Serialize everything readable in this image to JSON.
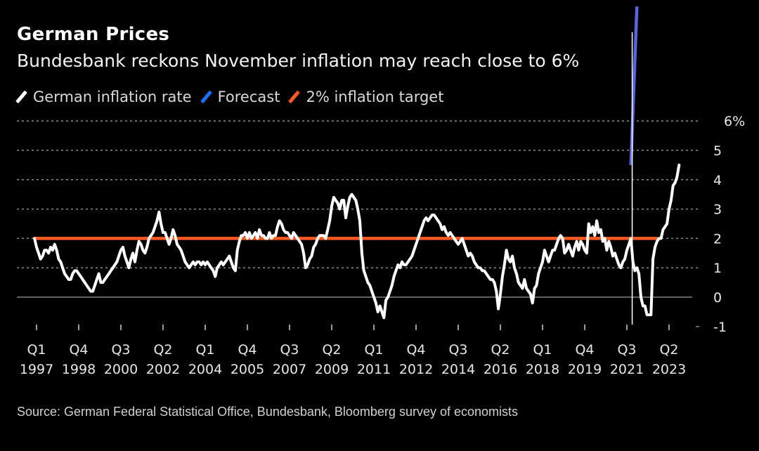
{
  "header": {
    "title": "German Prices",
    "subtitle": "Bundesbank reckons November inflation may reach close to 6%"
  },
  "legend": [
    {
      "label": "German inflation rate",
      "color": "#ffffff"
    },
    {
      "label": "Forecast",
      "color": "#1f6fff"
    },
    {
      "label": "2% inflation target",
      "color": "#ff5a24"
    }
  ],
  "footer": {
    "source": "Source: German Federal Statistical Office, Bundesbank, Bloomberg survey of economists"
  },
  "chart_data": {
    "type": "line",
    "title": "German Prices",
    "subtitle": "Bundesbank reckons November inflation may reach close to 6%",
    "xlabel": "",
    "ylabel": "",
    "ylim": [
      -1,
      6
    ],
    "y_ticks": [
      {
        "value": 6,
        "label": "6%"
      },
      {
        "value": 5,
        "label": "5"
      },
      {
        "value": 4,
        "label": "4"
      },
      {
        "value": 3,
        "label": "3"
      },
      {
        "value": 2,
        "label": "2"
      },
      {
        "value": 1,
        "label": "1"
      },
      {
        "value": 0,
        "label": "0"
      },
      {
        "value": -1,
        "label": "-1"
      }
    ],
    "x_range": [
      "1997-01",
      "2023-09"
    ],
    "x_ticks": [
      {
        "date": "1997-02",
        "q": "Q1",
        "year": "1997"
      },
      {
        "date": "1998-11",
        "q": "Q4",
        "year": "1998"
      },
      {
        "date": "2000-08",
        "q": "Q3",
        "year": "2000"
      },
      {
        "date": "2002-05",
        "q": "Q2",
        "year": "2002"
      },
      {
        "date": "2004-02",
        "q": "Q1",
        "year": "2004"
      },
      {
        "date": "2005-11",
        "q": "Q4",
        "year": "2005"
      },
      {
        "date": "2007-08",
        "q": "Q3",
        "year": "2007"
      },
      {
        "date": "2009-05",
        "q": "Q2",
        "year": "2009"
      },
      {
        "date": "2011-02",
        "q": "Q1",
        "year": "2011"
      },
      {
        "date": "2012-11",
        "q": "Q4",
        "year": "2012"
      },
      {
        "date": "2014-08",
        "q": "Q3",
        "year": "2014"
      },
      {
        "date": "2016-05",
        "q": "Q2",
        "year": "2016"
      },
      {
        "date": "2018-02",
        "q": "Q1",
        "year": "2018"
      },
      {
        "date": "2019-11",
        "q": "Q4",
        "year": "2019"
      },
      {
        "date": "2021-08",
        "q": "Q3",
        "year": "2021"
      },
      {
        "date": "2023-05",
        "q": "Q2",
        "year": "2023"
      }
    ],
    "grid": true,
    "legend_position": "top-left",
    "vertical_marker": {
      "date": "2021-11"
    },
    "series": [
      {
        "name": "German inflation rate",
        "color": "#ffffff",
        "start": "1997-01",
        "frequency": "monthly",
        "values": [
          2.0,
          1.7,
          1.5,
          1.3,
          1.4,
          1.6,
          1.6,
          1.5,
          1.7,
          1.6,
          1.8,
          1.6,
          1.3,
          1.2,
          1.0,
          0.8,
          0.7,
          0.6,
          0.6,
          0.8,
          0.9,
          0.9,
          0.8,
          0.7,
          0.6,
          0.5,
          0.4,
          0.3,
          0.2,
          0.2,
          0.4,
          0.6,
          0.8,
          0.5,
          0.5,
          0.6,
          0.7,
          0.8,
          0.9,
          1.0,
          1.1,
          1.2,
          1.4,
          1.6,
          1.7,
          1.4,
          1.2,
          1.0,
          1.3,
          1.5,
          1.2,
          1.6,
          1.9,
          1.8,
          1.6,
          1.5,
          1.7,
          2.0,
          2.1,
          2.2,
          2.4,
          2.6,
          2.9,
          2.5,
          2.2,
          2.2,
          2.0,
          1.8,
          2.0,
          2.3,
          2.1,
          1.8,
          1.7,
          1.6,
          1.4,
          1.2,
          1.1,
          1.0,
          1.1,
          1.2,
          1.1,
          1.2,
          1.2,
          1.1,
          1.2,
          1.1,
          1.2,
          1.1,
          1.0,
          0.9,
          0.7,
          1.0,
          1.1,
          1.2,
          1.1,
          1.2,
          1.3,
          1.4,
          1.2,
          1.0,
          0.9,
          1.6,
          1.9,
          2.1,
          2.1,
          2.2,
          2.0,
          2.2,
          2.0,
          2.1,
          2.2,
          2.0,
          2.3,
          2.1,
          2.1,
          2.0,
          2.0,
          2.2,
          2.0,
          2.1,
          2.1,
          2.4,
          2.6,
          2.5,
          2.3,
          2.2,
          2.2,
          2.1,
          2.0,
          2.2,
          2.1,
          2.0,
          1.9,
          1.8,
          1.5,
          1.0,
          1.1,
          1.3,
          1.4,
          1.7,
          1.8,
          2.0,
          2.1,
          2.1,
          2.1,
          2.0,
          2.3,
          2.6,
          3.1,
          3.4,
          3.3,
          3.2,
          3.0,
          3.3,
          3.3,
          2.7,
          3.1,
          3.4,
          3.5,
          3.4,
          3.3,
          3.0,
          2.6,
          1.5,
          0.9,
          0.7,
          0.5,
          0.4,
          0.2,
          0.0,
          -0.2,
          -0.5,
          -0.3,
          -0.5,
          -0.7,
          -0.1,
          0.0,
          0.2,
          0.4,
          0.7,
          0.9,
          1.1,
          1.0,
          1.2,
          1.1,
          1.1,
          1.2,
          1.3,
          1.4,
          1.6,
          1.8,
          2.0,
          2.2,
          2.4,
          2.6,
          2.7,
          2.6,
          2.7,
          2.8,
          2.8,
          2.7,
          2.6,
          2.5,
          2.3,
          2.4,
          2.2,
          2.1,
          2.2,
          2.1,
          2.0,
          1.9,
          1.8,
          1.9,
          2.0,
          1.8,
          1.6,
          1.4,
          1.5,
          1.4,
          1.2,
          1.1,
          1.0,
          1.0,
          0.9,
          0.9,
          0.8,
          0.7,
          0.6,
          0.6,
          0.5,
          0.2,
          -0.4,
          0.1,
          0.7,
          1.1,
          1.6,
          1.3,
          1.2,
          1.4,
          1.0,
          0.8,
          0.5,
          0.4,
          0.3,
          0.6,
          0.3,
          0.2,
          0.1,
          -0.2,
          0.3,
          0.4,
          0.8,
          1.0,
          1.2,
          1.6,
          1.4,
          1.2,
          1.4,
          1.6,
          1.6,
          1.8,
          2.0,
          2.1,
          2.0,
          1.5,
          1.6,
          1.8,
          1.6,
          1.4,
          1.7,
          1.9,
          1.6,
          1.9,
          1.8,
          1.6,
          1.5,
          2.5,
          2.2,
          2.4,
          2.1,
          2.6,
          2.2,
          2.3,
          1.9,
          2.0,
          1.6,
          1.9,
          1.7,
          1.4,
          1.5,
          1.3,
          1.1,
          1.0,
          1.2,
          1.3,
          1.6,
          1.8,
          2.0,
          1.2,
          0.9,
          1.0,
          0.8,
          0.0,
          -0.3,
          -0.3,
          -0.6,
          -0.6,
          -0.6,
          1.3,
          1.7,
          1.9,
          2.0,
          2.0,
          2.3,
          2.4,
          2.5,
          3.0,
          3.3,
          3.8,
          3.9,
          4.1,
          4.5
        ]
      },
      {
        "name": "Forecast",
        "color": "#5865e0",
        "points": [
          {
            "date": "2021-10",
            "value": 4.5
          },
          {
            "date": "2022-01",
            "value": 9.9
          }
        ]
      },
      {
        "name": "2% inflation target",
        "color": "#ff5a24",
        "points": [
          {
            "date": "1997-01",
            "value": 2.0
          },
          {
            "date": "2022-11",
            "value": 2.0
          }
        ]
      }
    ]
  }
}
